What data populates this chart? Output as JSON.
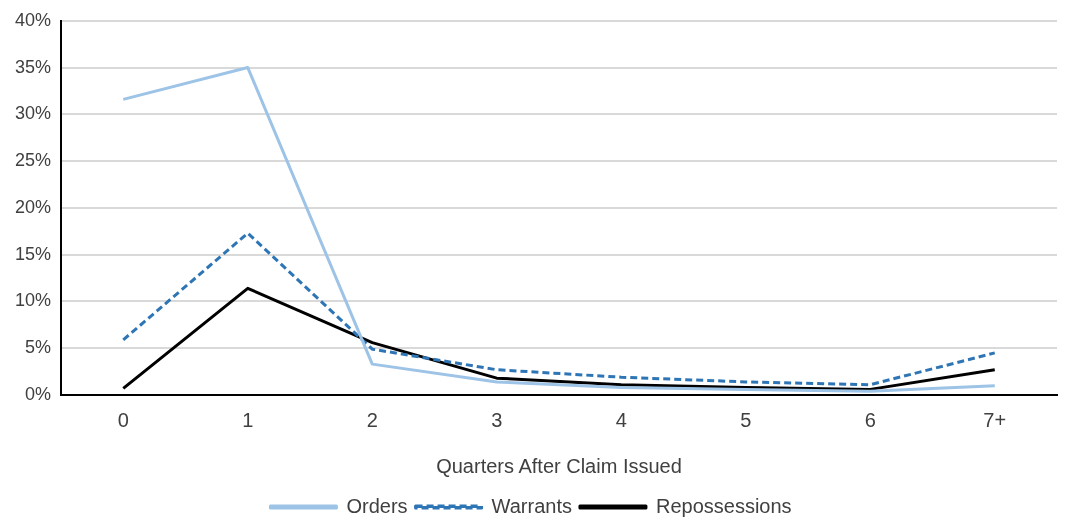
{
  "chart_data": {
    "type": "line",
    "xlabel": "Quarters After Claim Issued",
    "categories": [
      "0",
      "1",
      "2",
      "3",
      "4",
      "5",
      "6",
      "7+"
    ],
    "series": [
      {
        "name": "Orders",
        "color": "#9dc3e6",
        "line_style": "solid",
        "values": [
          31.6,
          35,
          3.3,
          1.4,
          0.8,
          0.6,
          0.4,
          1.0
        ]
      },
      {
        "name": "Warrants",
        "color": "#2e75b6",
        "line_style": "dashed",
        "values": [
          5.9,
          17.3,
          4.9,
          2.7,
          1.9,
          1.4,
          1.1,
          4.5
        ]
      },
      {
        "name": "Repossessions",
        "color": "#000000",
        "line_style": "solid",
        "values": [
          0.7,
          11.4,
          5.6,
          1.8,
          1.1,
          0.8,
          0.6,
          2.7
        ]
      }
    ],
    "ylim": [
      0,
      40
    ],
    "yticks": [
      {
        "value": 0,
        "label": "0%"
      },
      {
        "value": 5,
        "label": "5%"
      },
      {
        "value": 10,
        "label": "10%"
      },
      {
        "value": 15,
        "label": "15%"
      },
      {
        "value": 20,
        "label": "20%"
      },
      {
        "value": 25,
        "label": "25%"
      },
      {
        "value": 30,
        "label": "30%"
      },
      {
        "value": 35,
        "label": "35%"
      },
      {
        "value": 40,
        "label": "40%"
      }
    ],
    "grid": "y",
    "legend": "bottom",
    "marker": "none"
  }
}
